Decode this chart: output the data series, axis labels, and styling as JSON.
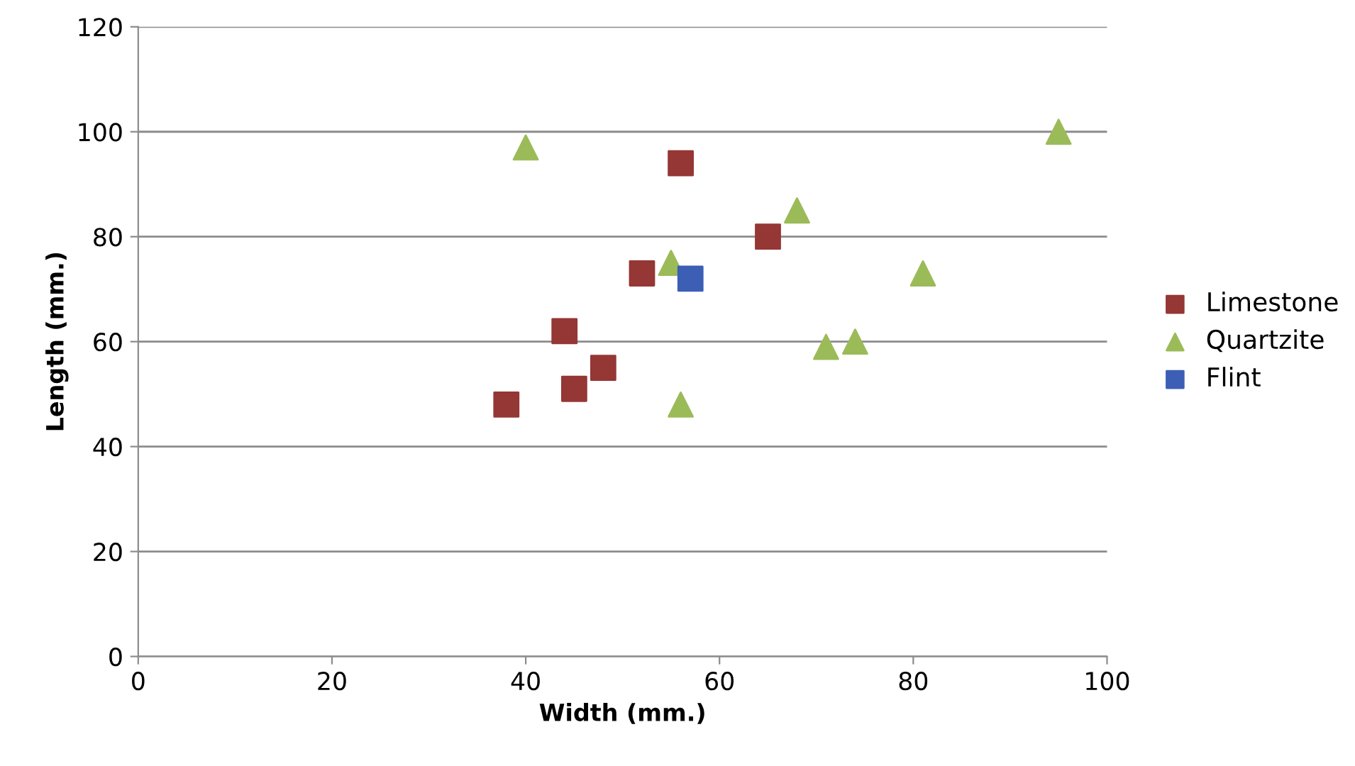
{
  "chart_data": {
    "type": "scatter",
    "xlabel": "Width (mm.)",
    "ylabel": "Length (mm.)",
    "xlim": [
      0,
      100
    ],
    "xticks": [
      0,
      20,
      40,
      60,
      80,
      100
    ],
    "ylim": [
      0,
      120
    ],
    "yticks": [
      0,
      20,
      40,
      60,
      80,
      100,
      120
    ],
    "grid": "y",
    "legend": "right",
    "series": [
      {
        "name": "Limestone",
        "color": "#953735",
        "marker": "square",
        "x": [
          38,
          44,
          45,
          48,
          52,
          56,
          65
        ],
        "values": [
          48,
          62,
          51,
          55,
          73,
          94,
          80
        ]
      },
      {
        "name": "Quartzite",
        "color": "#9bbb59",
        "marker": "triangle",
        "x": [
          40,
          55,
          56,
          68,
          71,
          74,
          81,
          95
        ],
        "values": [
          97,
          75,
          48,
          85,
          59,
          60,
          73,
          100
        ]
      },
      {
        "name": "Flint",
        "color": "#3c5fb5",
        "marker": "square",
        "x": [
          57
        ],
        "values": [
          72
        ]
      }
    ]
  }
}
